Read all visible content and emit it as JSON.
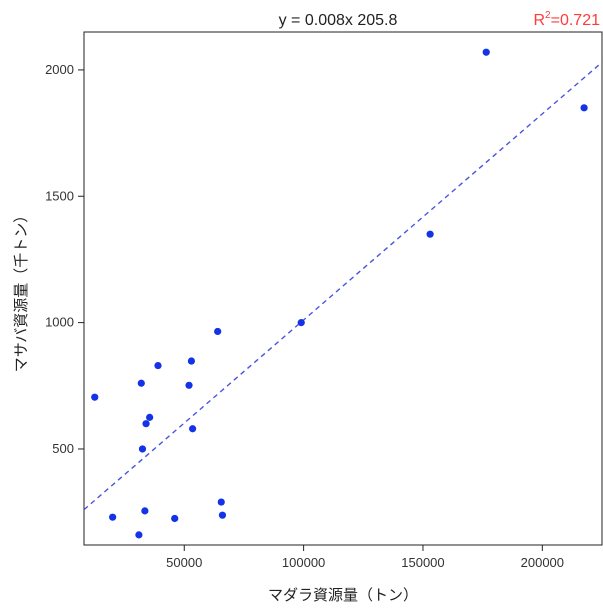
{
  "chart_data": {
    "type": "scatter",
    "xlabel": "マダラ資源量（トン）",
    "ylabel": "マサバ資源量（千トン）",
    "xlim": [
      8000,
      225000
    ],
    "ylim": [
      120,
      2150
    ],
    "xticks": [
      50000,
      100000,
      150000,
      200000
    ],
    "yticks": [
      500,
      1000,
      1500,
      2000
    ],
    "grid": false,
    "point_color": "#1432e6",
    "points": [
      {
        "x": 12500,
        "y": 705
      },
      {
        "x": 20000,
        "y": 230
      },
      {
        "x": 31000,
        "y": 160
      },
      {
        "x": 32000,
        "y": 760
      },
      {
        "x": 32500,
        "y": 500
      },
      {
        "x": 33500,
        "y": 255
      },
      {
        "x": 34000,
        "y": 600
      },
      {
        "x": 35500,
        "y": 625
      },
      {
        "x": 39000,
        "y": 830
      },
      {
        "x": 46000,
        "y": 225
      },
      {
        "x": 52000,
        "y": 752
      },
      {
        "x": 53000,
        "y": 848
      },
      {
        "x": 53500,
        "y": 580
      },
      {
        "x": 64000,
        "y": 965
      },
      {
        "x": 65500,
        "y": 290
      },
      {
        "x": 66000,
        "y": 238
      },
      {
        "x": 99000,
        "y": 1000
      },
      {
        "x": 153000,
        "y": 1350
      },
      {
        "x": 176500,
        "y": 2070
      },
      {
        "x": 217500,
        "y": 1850
      }
    ],
    "trendline": {
      "style": "dashed",
      "color": "#4a55dd",
      "x": [
        8000,
        225000
      ],
      "y": [
        260,
        2030
      ]
    },
    "annotations": {
      "equation": "y = 0.008x 205.8",
      "r2_prefix": "R",
      "r2_sup": "2",
      "r2_value": "=0.721",
      "r2_color": "#ff3b3b"
    }
  }
}
